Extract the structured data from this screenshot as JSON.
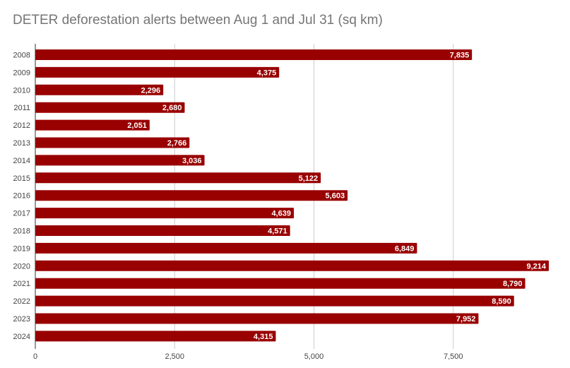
{
  "chart_data": {
    "type": "bar",
    "orientation": "horizontal",
    "title": "DETER deforestation alerts between Aug 1 and Jul 31 (sq km)",
    "xlabel": "",
    "ylabel": "",
    "categories": [
      "2008",
      "2009",
      "2010",
      "2011",
      "2012",
      "2013",
      "2014",
      "2015",
      "2016",
      "2017",
      "2018",
      "2019",
      "2020",
      "2021",
      "2022",
      "2023",
      "2024"
    ],
    "values": [
      7835,
      4375,
      2296,
      2680,
      2051,
      2766,
      3036,
      5122,
      5603,
      4639,
      4571,
      6849,
      9214,
      8790,
      8590,
      7952,
      4315
    ],
    "value_labels": [
      "7,835",
      "4,375",
      "2,296",
      "2,680",
      "2,051",
      "2,766",
      "3,036",
      "5,122",
      "5,603",
      "4,639",
      "4,571",
      "6,849",
      "9,214",
      "8,790",
      "8,590",
      "7,952",
      "4,315"
    ],
    "xticks": [
      0,
      2500,
      5000,
      7500
    ],
    "xtick_labels": [
      "0",
      "2,500",
      "5,000",
      "7,500"
    ],
    "xlim": [
      0,
      9214
    ],
    "grid": "vertical",
    "legend": "none",
    "bar_color": "#990000",
    "grid_color": "#cccccc",
    "axis_color": "#333333"
  }
}
